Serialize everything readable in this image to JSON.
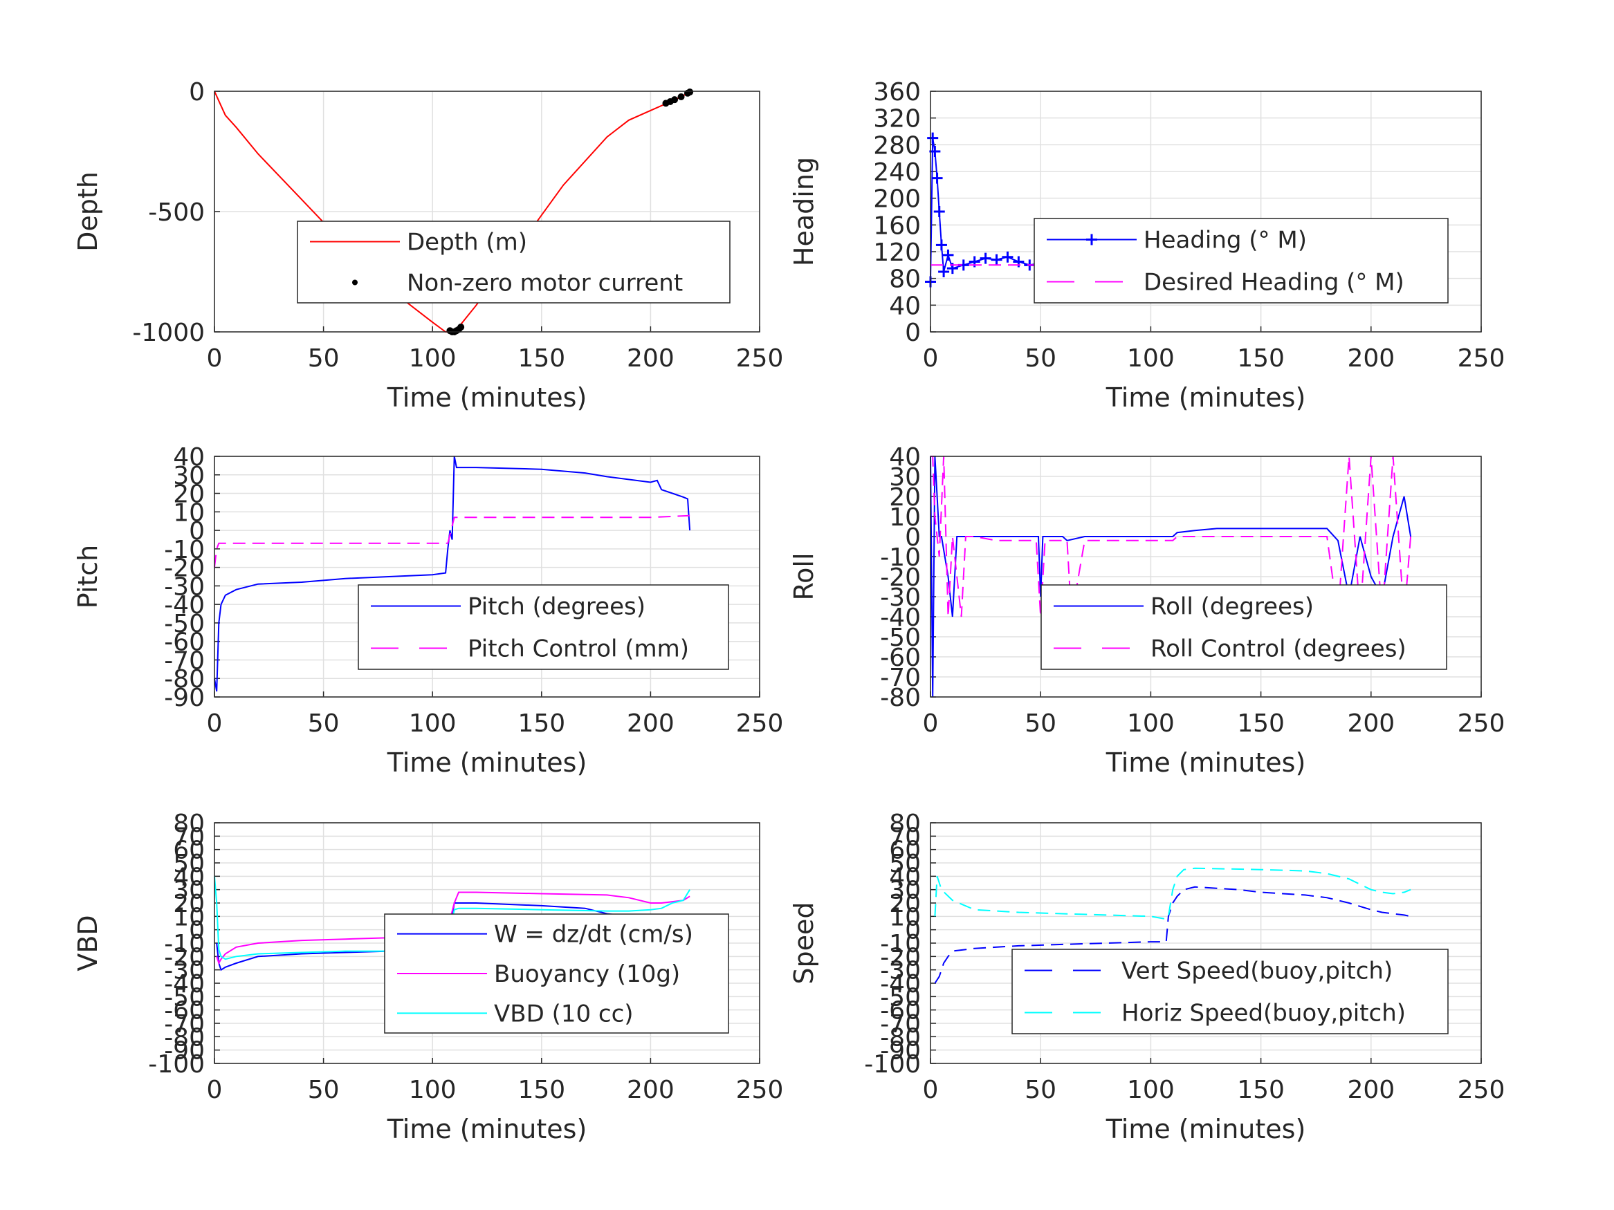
{
  "chart_data": [
    {
      "id": "depth",
      "type": "line",
      "xlabel": "Time (minutes)",
      "ylabel": "Depth",
      "xlim": [
        0,
        250
      ],
      "ylim": [
        -1000,
        0
      ],
      "x_ticks": [
        "0",
        "50",
        "100",
        "150",
        "200",
        "250"
      ],
      "y_ticks": [
        "0",
        "-500",
        "-1000"
      ],
      "grid": true,
      "legend_placement": "center-right",
      "series": [
        {
          "name": "Depth (m)",
          "color": "#ff0000",
          "style": "solid",
          "x": [
            0,
            2,
            5,
            10,
            20,
            40,
            60,
            80,
            100,
            106,
            109,
            112,
            120,
            140,
            160,
            180,
            190,
            200,
            210,
            218
          ],
          "y": [
            0,
            -40,
            -100,
            -150,
            -260,
            -450,
            -640,
            -820,
            -960,
            -1000,
            -1000,
            -980,
            -890,
            -640,
            -390,
            -190,
            -120,
            -80,
            -40,
            -5
          ]
        },
        {
          "name": "Non-zero motor current",
          "color": "#000000",
          "style": "points",
          "x": [
            108,
            109,
            110,
            111,
            112,
            113,
            207,
            209,
            211,
            214,
            217,
            218
          ],
          "y": [
            -995,
            -1000,
            -1000,
            -995,
            -990,
            -980,
            -50,
            -43,
            -35,
            -23,
            -8,
            -3
          ]
        }
      ]
    },
    {
      "id": "heading",
      "type": "line",
      "xlabel": "Time (minutes)",
      "ylabel": "Heading",
      "xlim": [
        0,
        250
      ],
      "ylim": [
        0,
        360
      ],
      "x_ticks": [
        "0",
        "50",
        "100",
        "150",
        "200",
        "250"
      ],
      "y_ticks": [
        "0",
        "40",
        "80",
        "120",
        "160",
        "200",
        "240",
        "280",
        "320",
        "360"
      ],
      "grid": true,
      "legend_placement": "center-right",
      "series": [
        {
          "name": "Heading (° M)",
          "color": "#0000ff",
          "style": "plus-markers",
          "x": [
            0,
            1,
            2,
            3,
            4,
            5,
            6,
            8,
            10,
            15,
            20,
            25,
            30,
            35,
            40,
            45,
            50,
            55,
            60,
            65,
            70,
            75,
            80,
            85,
            90,
            95,
            100,
            105,
            108,
            110,
            112,
            115,
            120,
            130,
            140,
            150,
            160,
            170,
            180,
            190,
            195,
            200,
            205,
            208,
            210,
            212,
            215,
            218
          ],
          "y": [
            75,
            290,
            270,
            230,
            180,
            130,
            90,
            115,
            95,
            100,
            105,
            110,
            108,
            112,
            105,
            100,
            103,
            95,
            85,
            110,
            118,
            110,
            100,
            105,
            108,
            110,
            102,
            105,
            95,
            60,
            80,
            100,
            105,
            100,
            102,
            98,
            105,
            100,
            95,
            110,
            130,
            95,
            120,
            150,
            130,
            95,
            110,
            100
          ]
        },
        {
          "name": "Desired Heading (° M)",
          "color": "#ff00ff",
          "style": "dashed",
          "x": [
            0,
            218
          ],
          "y": [
            100,
            100
          ]
        }
      ]
    },
    {
      "id": "pitch",
      "type": "line",
      "xlabel": "Time (minutes)",
      "ylabel": "Pitch",
      "xlim": [
        0,
        250
      ],
      "ylim": [
        -90,
        40
      ],
      "x_ticks": [
        "0",
        "50",
        "100",
        "150",
        "200",
        "250"
      ],
      "y_ticks": [
        "40",
        "30",
        "20",
        "10",
        "0",
        "-10",
        "-20",
        "-30",
        "-40",
        "-50",
        "-60",
        "-70",
        "-80",
        "-90"
      ],
      "grid": true,
      "legend_placement": "center-right",
      "series": [
        {
          "name": "Pitch (degrees)",
          "color": "#0000ff",
          "style": "solid",
          "x": [
            0,
            1,
            2,
            3,
            5,
            10,
            20,
            40,
            60,
            80,
            100,
            106,
            107,
            108,
            109,
            110,
            111,
            120,
            150,
            170,
            180,
            200,
            203,
            205,
            210,
            215,
            217,
            218
          ],
          "y": [
            -80,
            -87,
            -50,
            -40,
            -35,
            -32,
            -29,
            -28,
            -26,
            -25,
            -24,
            -23,
            -10,
            0,
            -5,
            40,
            34,
            34,
            33,
            31,
            29,
            26,
            27,
            22,
            20,
            18,
            17,
            0
          ]
        },
        {
          "name": "Pitch Control (mm)",
          "color": "#ff00ff",
          "style": "dashed",
          "x": [
            0,
            1,
            2,
            5,
            50,
            100,
            106,
            107,
            110,
            150,
            200,
            218
          ],
          "y": [
            -20,
            -10,
            -7,
            -7,
            -7,
            -7,
            -7,
            -7,
            7,
            7,
            7,
            8
          ]
        }
      ]
    },
    {
      "id": "roll",
      "type": "line",
      "xlabel": "Time (minutes)",
      "ylabel": "Roll",
      "xlim": [
        0,
        250
      ],
      "ylim": [
        -80,
        40
      ],
      "x_ticks": [
        "0",
        "50",
        "100",
        "150",
        "200",
        "250"
      ],
      "y_ticks": [
        "40",
        "30",
        "20",
        "10",
        "0",
        "-10",
        "-20",
        "-30",
        "-40",
        "-50",
        "-60",
        "-70",
        "-80"
      ],
      "grid": true,
      "legend_placement": "center-right",
      "series": [
        {
          "name": "Roll (degrees)",
          "color": "#0000ff",
          "style": "solid",
          "x": [
            0,
            1,
            2,
            3,
            4,
            5,
            8,
            10,
            12,
            15,
            20,
            30,
            40,
            49,
            50,
            51,
            60,
            62,
            70,
            80,
            100,
            110,
            112,
            120,
            130,
            140,
            150,
            170,
            180,
            185,
            190,
            195,
            200,
            205,
            210,
            215,
            218
          ],
          "y": [
            40,
            -80,
            40,
            20,
            0,
            0,
            -20,
            -40,
            0,
            0,
            0,
            0,
            0,
            0,
            -30,
            0,
            0,
            -2,
            0,
            0,
            0,
            0,
            2,
            3,
            4,
            4,
            4,
            4,
            4,
            -2,
            -30,
            0,
            -20,
            -30,
            0,
            20,
            0
          ]
        },
        {
          "name": "Roll Control (degrees)",
          "color": "#ff00ff",
          "style": "dashed",
          "x": [
            0,
            1,
            2,
            4,
            6,
            8,
            10,
            14,
            16,
            20,
            30,
            40,
            48,
            50,
            52,
            60,
            62,
            64,
            70,
            80,
            100,
            110,
            112,
            120,
            150,
            180,
            185,
            190,
            195,
            200,
            205,
            210,
            215,
            218
          ],
          "y": [
            40,
            40,
            10,
            -10,
            40,
            -40,
            0,
            -40,
            0,
            0,
            -2,
            -2,
            -2,
            -40,
            -2,
            -2,
            -2,
            -40,
            -2,
            -2,
            -2,
            -2,
            0,
            0,
            0,
            0,
            -40,
            40,
            -40,
            40,
            -40,
            40,
            -40,
            0
          ]
        }
      ]
    },
    {
      "id": "vbd",
      "type": "line",
      "xlabel": "Time (minutes)",
      "ylabel": "VBD",
      "xlim": [
        0,
        250
      ],
      "ylim": [
        -100,
        80
      ],
      "x_ticks": [
        "0",
        "50",
        "100",
        "150",
        "200",
        "250"
      ],
      "y_ticks": [
        "80",
        "70",
        "60",
        "50",
        "40",
        "30",
        "20",
        "10",
        "0",
        "-10",
        "-20",
        "-30",
        "-40",
        "-50",
        "-60",
        "-70",
        "-80",
        "-90",
        "-100"
      ],
      "grid": true,
      "legend_placement": "center-right",
      "series": [
        {
          "name": "W = dz/dt (cm/s)",
          "color": "#0000ff",
          "style": "solid",
          "x": [
            1,
            2,
            3,
            5,
            10,
            20,
            40,
            60,
            80,
            100,
            106,
            108,
            110,
            112,
            120,
            150,
            170,
            180,
            190,
            200,
            210,
            215,
            218
          ],
          "y": [
            -10,
            -25,
            -30,
            -28,
            -25,
            -20,
            -18,
            -17,
            -16,
            -15,
            -14,
            0,
            20,
            20,
            20,
            18,
            16,
            12,
            10,
            8,
            8,
            7,
            6
          ]
        },
        {
          "name": "Buoyancy (10g)",
          "color": "#ff00ff",
          "style": "solid",
          "x": [
            1,
            2,
            3,
            5,
            10,
            20,
            40,
            60,
            80,
            100,
            106,
            110,
            112,
            120,
            150,
            180,
            190,
            200,
            205,
            210,
            215,
            218
          ],
          "y": [
            -20,
            -25,
            -22,
            -18,
            -13,
            -10,
            -8,
            -7,
            -6,
            -6,
            -5,
            20,
            28,
            28,
            27,
            26,
            24,
            20,
            20,
            21,
            22,
            25
          ]
        },
        {
          "name": "VBD (10 cc)",
          "color": "#00ffff",
          "style": "solid",
          "x": [
            0,
            1,
            2,
            3,
            5,
            10,
            20,
            40,
            60,
            80,
            100,
            106,
            110,
            112,
            120,
            150,
            180,
            190,
            200,
            205,
            210,
            215,
            218
          ],
          "y": [
            40,
            20,
            -15,
            -20,
            -22,
            -20,
            -18,
            -17,
            -16,
            -16,
            -16,
            -16,
            15,
            16,
            16,
            15,
            14,
            14,
            15,
            16,
            20,
            22,
            30
          ]
        }
      ]
    },
    {
      "id": "speed",
      "type": "line",
      "xlabel": "Time (minutes)",
      "ylabel": "Speed",
      "xlim": [
        0,
        250
      ],
      "ylim": [
        -100,
        80
      ],
      "x_ticks": [
        "0",
        "50",
        "100",
        "150",
        "200",
        "250"
      ],
      "y_ticks": [
        "80",
        "70",
        "60",
        "50",
        "40",
        "30",
        "20",
        "10",
        "0",
        "-10",
        "-20",
        "-30",
        "-40",
        "-50",
        "-60",
        "-70",
        "-80",
        "-90",
        "-100"
      ],
      "grid": true,
      "legend_placement": "bottom-right",
      "series": [
        {
          "name": "Vert Speed(buoy,pitch)",
          "color": "#0000ff",
          "style": "dashed",
          "x": [
            2,
            4,
            6,
            8,
            10,
            20,
            40,
            60,
            80,
            100,
            107,
            108,
            110,
            112,
            115,
            120,
            130,
            140,
            150,
            160,
            170,
            180,
            190,
            200,
            205,
            210,
            215,
            218
          ],
          "y": [
            -40,
            -35,
            -25,
            -20,
            -16,
            -14,
            -12,
            -11,
            -10,
            -9,
            -9,
            10,
            20,
            25,
            30,
            32,
            31,
            30,
            28,
            27,
            26,
            24,
            20,
            15,
            13,
            12,
            11,
            10
          ]
        },
        {
          "name": "Horiz Speed(buoy,pitch)",
          "color": "#00ffff",
          "style": "dashed",
          "x": [
            2,
            3,
            5,
            10,
            20,
            40,
            60,
            80,
            100,
            107,
            108,
            110,
            112,
            115,
            120,
            150,
            170,
            180,
            190,
            200,
            205,
            210,
            215,
            218
          ],
          "y": [
            10,
            40,
            30,
            22,
            15,
            13,
            12,
            11,
            10,
            8,
            10,
            30,
            40,
            45,
            46,
            45,
            44,
            42,
            38,
            30,
            28,
            27,
            28,
            30
          ]
        }
      ]
    }
  ]
}
